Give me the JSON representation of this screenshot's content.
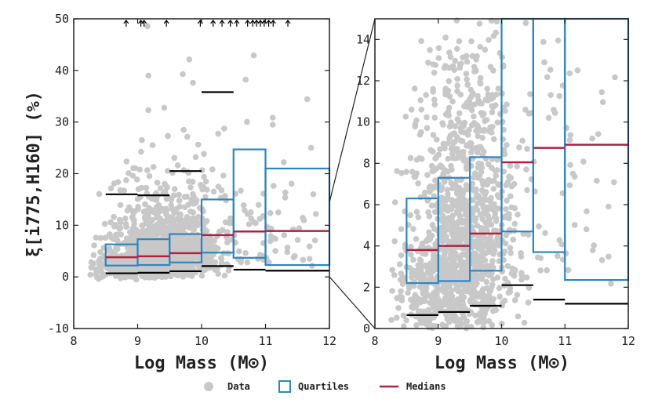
{
  "chart_data": [
    {
      "name": "full",
      "type": "scatter",
      "xlabel": "Log Mass (M⊙)",
      "ylabel": "ξ[i775,H160]  (%)",
      "xlim": [
        8,
        12
      ],
      "ylim": [
        -10,
        50
      ],
      "xticks": [
        "8",
        "9",
        "10",
        "11",
        "12"
      ],
      "yticks": [
        "-10",
        "0",
        "10",
        "20",
        "30",
        "40",
        "50"
      ],
      "bins": [
        {
          "x0": 8.5,
          "x1": 9.0,
          "q1": 2.2,
          "median": 3.8,
          "q3": 6.3,
          "p_low": 0.7,
          "p_high": 16.0
        },
        {
          "x0": 9.0,
          "x1": 9.5,
          "q1": 2.3,
          "median": 4.0,
          "q3": 7.3,
          "p_low": 0.8,
          "p_high": 15.8
        },
        {
          "x0": 9.5,
          "x1": 10.0,
          "q1": 2.8,
          "median": 4.6,
          "q3": 8.3,
          "p_low": 1.1,
          "p_high": 20.5
        },
        {
          "x0": 10.0,
          "x1": 10.5,
          "q1": 4.7,
          "median": 8.1,
          "q3": 15.0,
          "p_low": 2.1,
          "p_high": 35.8
        },
        {
          "x0": 10.5,
          "x1": 11.0,
          "q1": 3.7,
          "median": 8.8,
          "q3": 24.7,
          "p_low": 1.4,
          "p_high": null
        },
        {
          "x0": 11.0,
          "x1": 12.0,
          "q1": 2.3,
          "median": 8.9,
          "q3": 21.0,
          "p_low": 1.2,
          "p_high": null
        }
      ],
      "upper_limit_arrows_x": [
        8.82,
        9.05,
        9.1,
        9.45,
        9.98,
        10.18,
        10.32,
        10.45,
        10.55,
        10.72,
        10.8,
        10.86,
        10.92,
        10.98,
        11.05,
        11.12,
        11.35
      ]
    },
    {
      "name": "zoom",
      "type": "scatter",
      "xlabel": "Log Mass (M⊙)",
      "ylabel": "",
      "xlim": [
        8,
        12
      ],
      "ylim": [
        0,
        15
      ],
      "xticks": [
        "8",
        "9",
        "10",
        "11",
        "12"
      ],
      "yticks": [
        "0",
        "2",
        "4",
        "6",
        "8",
        "10",
        "12",
        "14"
      ],
      "bins": [
        {
          "x0": 8.5,
          "x1": 9.0,
          "q1": 2.2,
          "median": 3.8,
          "q3": 6.3,
          "p_low": 0.65
        },
        {
          "x0": 9.0,
          "x1": 9.5,
          "q1": 2.3,
          "median": 4.0,
          "q3": 7.3,
          "p_low": 0.8
        },
        {
          "x0": 9.5,
          "x1": 10.0,
          "q1": 2.8,
          "median": 4.6,
          "q3": 8.3,
          "p_low": 1.1
        },
        {
          "x0": 10.0,
          "x1": 10.5,
          "q1": 4.7,
          "median": 8.05,
          "q3": 15.0,
          "p_low": 2.1
        },
        {
          "x0": 10.5,
          "x1": 11.0,
          "q1": 3.7,
          "median": 8.75,
          "q3": 15.0,
          "p_low": 1.4
        },
        {
          "x0": 11.0,
          "x1": 12.0,
          "q1": 2.35,
          "median": 8.9,
          "q3": 15.0,
          "p_low": 1.2
        }
      ]
    }
  ],
  "legend": {
    "position": "bottom-center",
    "items": [
      {
        "label": "Data",
        "marker": "circle",
        "color": "#c8c8c8"
      },
      {
        "label": "Quartiles",
        "marker": "square-outline",
        "color": "#2e86c1"
      },
      {
        "label": "Medians",
        "marker": "line",
        "color": "#b0203f"
      }
    ]
  },
  "colors": {
    "data": "#c8c8c8",
    "quartiles": "#2e86c1",
    "medians": "#b0203f",
    "percentile": "#000000"
  }
}
